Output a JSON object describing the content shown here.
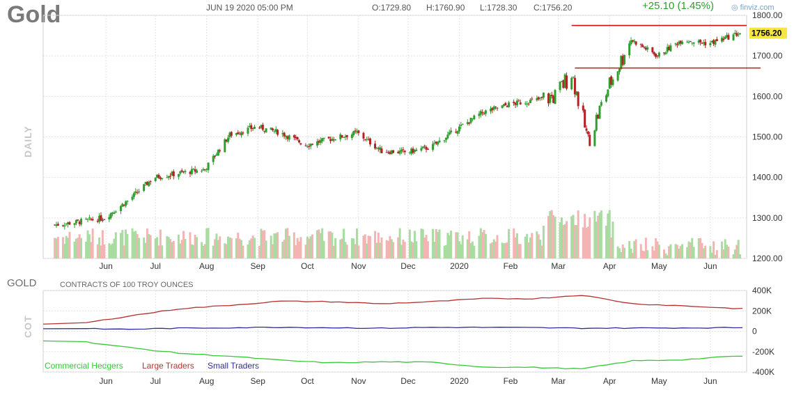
{
  "header": {
    "ticker": "Gold",
    "datetime": "JUN 19 2020 05:00 PM",
    "open": "O:1729.80",
    "high": "H:1760.90",
    "low": "L:1728.30",
    "close": "C:1756.20",
    "change": "+25.10 (1.45%)",
    "brand": "finviz.com"
  },
  "price_panel": {
    "side_label": "DAILY",
    "last_price_tag": "1756.20"
  },
  "cot_panel": {
    "title": "GOLD",
    "subtitle": "CONTRACTS OF 100 TROY OUNCES",
    "side_label": "COT",
    "legend": [
      "Commercial Hedgers",
      "Large Traders",
      "Small Traders"
    ]
  },
  "colors": {
    "up": "#2e9e2e",
    "down": "#b22222",
    "vol_up": "#a8dca0",
    "vol_down": "#f4b4b4",
    "commercial": "#34c934",
    "large": "#b23232",
    "small": "#2c2c9c",
    "resistance": "#cc1111",
    "tag": "#f5e642"
  },
  "chart_data": [
    {
      "type": "line",
      "title": "Gold",
      "xlabel": "",
      "ylabel": "",
      "ylim": [
        1200,
        1800
      ],
      "x_ticks": [
        "Jun",
        "Jul",
        "Aug",
        "Sep",
        "Oct",
        "Nov",
        "Dec",
        "2020",
        "Feb",
        "Mar",
        "Apr",
        "May",
        "Jun"
      ],
      "y_ticks": [
        "1800.00",
        "1700.00",
        "1600.00",
        "1500.00",
        "1400.00",
        "1300.00",
        "1200.00"
      ],
      "grid": true,
      "series": [
        {
          "name": "",
          "x": [
            "2019-05-01",
            "2019-05-15",
            "2019-05-31",
            "2019-06-15",
            "2019-06-30",
            "2019-07-15",
            "2019-07-31",
            "2019-08-15",
            "2019-08-31",
            "2019-09-15",
            "2019-09-30",
            "2019-10-15",
            "2019-10-31",
            "2019-11-15",
            "2019-11-30",
            "2019-12-15",
            "2019-12-31",
            "2020-01-15",
            "2020-01-31",
            "2020-02-15",
            "2020-02-28",
            "2020-03-09",
            "2020-03-19",
            "2020-03-31",
            "2020-04-14",
            "2020-04-30",
            "2020-05-15",
            "2020-05-31",
            "2020-06-19"
          ],
          "values": [
            1283,
            1290,
            1300,
            1345,
            1400,
            1410,
            1420,
            1505,
            1525,
            1510,
            1480,
            1495,
            1510,
            1465,
            1462,
            1475,
            1520,
            1560,
            1580,
            1590,
            1600,
            1660,
            1490,
            1620,
            1740,
            1700,
            1740,
            1730,
            1756
          ]
        }
      ],
      "resistance_levels": [
        1775,
        1670
      ]
    },
    {
      "type": "line",
      "title": "GOLD",
      "xlabel": "",
      "ylabel": "COT",
      "ylim": [
        -400000,
        400000
      ],
      "y_ticks": [
        "400K",
        "200K",
        "0",
        "-200K",
        "-400K"
      ],
      "grid": true,
      "series": [
        {
          "name": "Commercial Hedgers",
          "x": [
            "2019-05",
            "2019-06",
            "2019-07",
            "2019-08",
            "2019-09",
            "2019-10",
            "2019-11",
            "2019-12",
            "2020-01",
            "2020-02",
            "2020-03",
            "2020-04",
            "2020-05",
            "2020-06"
          ],
          "values": [
            -95000,
            -160000,
            -215000,
            -245000,
            -285000,
            -310000,
            -300000,
            -305000,
            -350000,
            -355000,
            -370000,
            -290000,
            -280000,
            -245000
          ]
        },
        {
          "name": "Large Traders",
          "x": [
            "2019-05",
            "2019-06",
            "2019-07",
            "2019-08",
            "2019-09",
            "2019-10",
            "2019-11",
            "2019-12",
            "2020-01",
            "2020-02",
            "2020-03",
            "2020-04",
            "2020-05",
            "2020-06"
          ],
          "values": [
            70000,
            150000,
            220000,
            255000,
            295000,
            290000,
            270000,
            290000,
            320000,
            320000,
            355000,
            270000,
            250000,
            225000
          ]
        },
        {
          "name": "Small Traders",
          "x": [
            "2019-05",
            "2019-06",
            "2019-07",
            "2019-08",
            "2019-09",
            "2019-10",
            "2019-11",
            "2019-12",
            "2020-01",
            "2020-02",
            "2020-03",
            "2020-04",
            "2020-05",
            "2020-06"
          ],
          "values": [
            25000,
            20000,
            30000,
            35000,
            40000,
            35000,
            30000,
            38000,
            38000,
            35000,
            30000,
            32000,
            33000,
            35000
          ]
        }
      ]
    }
  ]
}
